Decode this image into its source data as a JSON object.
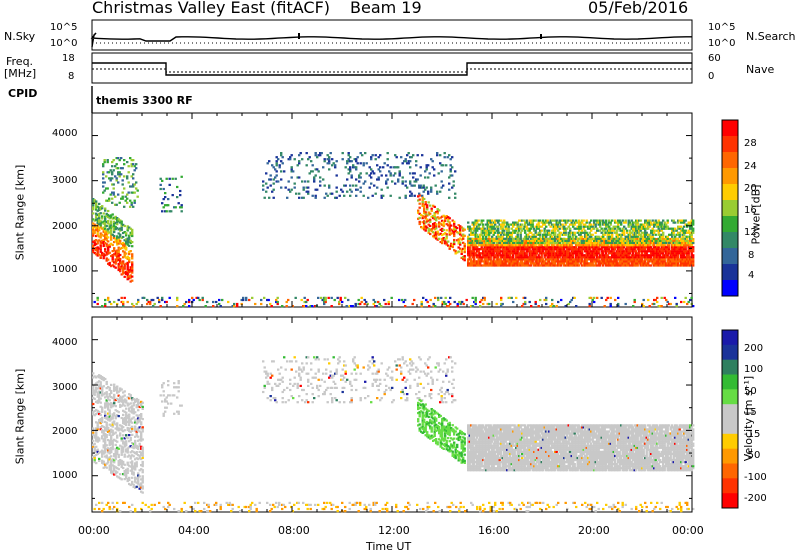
{
  "header": {
    "site": "Christmas Valley East (fitACF)",
    "beam": "Beam 19",
    "date": "05/Feb/2016"
  },
  "status_panel": {
    "nsky_label": "N.Sky",
    "nsearch_label": "N.Search",
    "freq_label": "Freq.",
    "freq_units": "[MHz]",
    "nave_label": "Nave",
    "cpid_label": "CPID",
    "cpid_value": "themis 3300 RF",
    "noise_ticks_left": [
      "10^5",
      "10^0"
    ],
    "noise_ticks_right": [
      "10^5",
      "10^0"
    ],
    "freq_ticks": [
      "18",
      "8"
    ],
    "nave_ticks": [
      "60",
      "0"
    ]
  },
  "power_colorbar": {
    "label": "Power [dB]",
    "ticks": [
      "28",
      "24",
      "20",
      "16",
      "12",
      "8",
      "4"
    ],
    "colors": [
      "#ff0000",
      "#ff3300",
      "#ff6600",
      "#ff9900",
      "#ffcc00",
      "#99cc33",
      "#33aa33",
      "#338866",
      "#336699",
      "#1a3399",
      "#0000ff"
    ]
  },
  "velocity_colorbar": {
    "label": "Velocity [m s⁻¹]",
    "ticks": [
      "200",
      "100",
      "50",
      "15",
      "-15",
      "-50",
      "-100",
      "-200"
    ],
    "colors": [
      "#1a1aaa",
      "#1a3399",
      "#2f7f5f",
      "#33bb33",
      "#66dd44",
      "#c8c8c8",
      "#c8c8c8",
      "#ffcc00",
      "#ff9900",
      "#ff6600",
      "#ff3300",
      "#ff0000"
    ]
  },
  "axes": {
    "ylabel": "Slant Range [km]",
    "xlabel": "Time UT",
    "yticks": [
      "4000",
      "3000",
      "2000",
      "1000"
    ],
    "xticks": [
      "00:00",
      "04:00",
      "08:00",
      "12:00",
      "16:00",
      "20:00",
      "00:00"
    ]
  },
  "chart_data": [
    {
      "type": "heatmap",
      "name": "Power panel",
      "x_unit": "hours UT",
      "y_unit": "km",
      "xlim": [
        0,
        24
      ],
      "ylim": [
        200,
        4500
      ],
      "features": [
        {
          "t_start": 0.0,
          "t_end": 1.6,
          "r_low": 1400,
          "r_high": 2600,
          "value_db": 22
        },
        {
          "t_start": 0.4,
          "t_end": 1.8,
          "r_low": 2400,
          "r_high": 3500,
          "value_db": 14
        },
        {
          "t_start": 2.7,
          "t_end": 3.6,
          "r_low": 2300,
          "r_high": 3100,
          "value_db": 10
        },
        {
          "t_start": 6.8,
          "t_end": 14.5,
          "r_low": 2600,
          "r_high": 3600,
          "value_db": 8
        },
        {
          "t_start": 13.0,
          "t_end": 14.9,
          "r_low": 1300,
          "r_high": 2800,
          "value_db": 20
        },
        {
          "t_start": 15.0,
          "t_end": 24.0,
          "r_low": 1100,
          "r_high": 1700,
          "value_db": 28
        },
        {
          "t_start": 15.0,
          "t_end": 24.0,
          "r_low": 1600,
          "r_high": 2100,
          "value_db": 14
        }
      ]
    },
    {
      "type": "heatmap",
      "name": "Velocity panel",
      "x_unit": "hours UT",
      "y_unit": "km",
      "xlim": [
        0,
        24
      ],
      "ylim": [
        200,
        4500
      ],
      "features": [
        {
          "t_start": 0.0,
          "t_end": 2.0,
          "r_low": 1300,
          "r_high": 3300,
          "value_ms": 0
        },
        {
          "t_start": 13.0,
          "t_end": 14.9,
          "r_low": 1300,
          "r_high": 2700,
          "value_ms": 40
        },
        {
          "t_start": 15.0,
          "t_end": 24.0,
          "r_low": 1100,
          "r_high": 2100,
          "value_ms": 0
        }
      ]
    }
  ]
}
